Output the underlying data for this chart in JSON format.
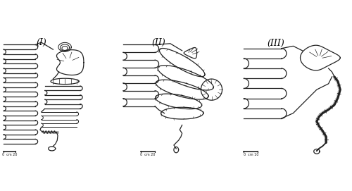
{
  "title_I": "(I)",
  "title_II": "(II)",
  "title_III": "(III)",
  "scale_label_I": "0  cm 20",
  "scale_label_II": "0  cm 20",
  "scale_label_III": "0  cm 10",
  "bg_color": "#ffffff",
  "line_color": "#222222",
  "line_width": 0.9,
  "fig_width": 5.0,
  "fig_height": 2.71,
  "dpi": 100
}
